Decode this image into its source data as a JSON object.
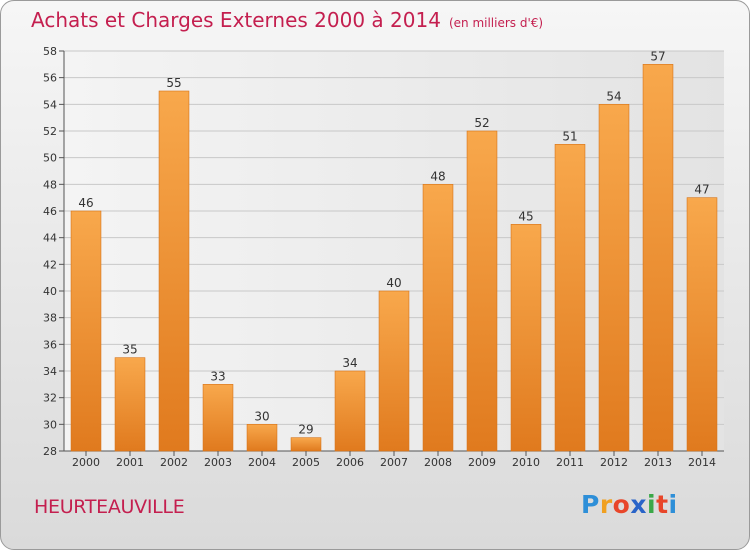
{
  "title": "Achats et Charges Externes 2000 à 2014",
  "unit": "(en milliers d'€)",
  "commune": "HEURTEAUVILLE",
  "logo": {
    "letters": [
      "P",
      "r",
      "o",
      "x",
      "i",
      "t",
      "i"
    ],
    "colors": [
      "#2e8fd8",
      "#f0a020",
      "#e8462a",
      "#2a64c8",
      "#3aa848",
      "#e8462a",
      "#2e8fd8"
    ]
  },
  "colors": {
    "bar_light": "#f8a84c",
    "bar_dark": "#e07a1e",
    "title": "#c41f4f"
  },
  "chart_data": {
    "type": "bar",
    "categories": [
      "2000",
      "2001",
      "2002",
      "2003",
      "2004",
      "2005",
      "2006",
      "2007",
      "2008",
      "2009",
      "2010",
      "2011",
      "2012",
      "2013",
      "2014"
    ],
    "values": [
      46,
      35,
      55,
      33,
      30,
      29,
      34,
      40,
      48,
      52,
      45,
      51,
      54,
      57,
      47
    ],
    "ylim": [
      28,
      58
    ],
    "yticks": [
      28,
      30,
      32,
      34,
      36,
      38,
      40,
      42,
      44,
      46,
      48,
      50,
      52,
      54,
      56,
      58
    ],
    "grid": true,
    "legend": "none"
  }
}
